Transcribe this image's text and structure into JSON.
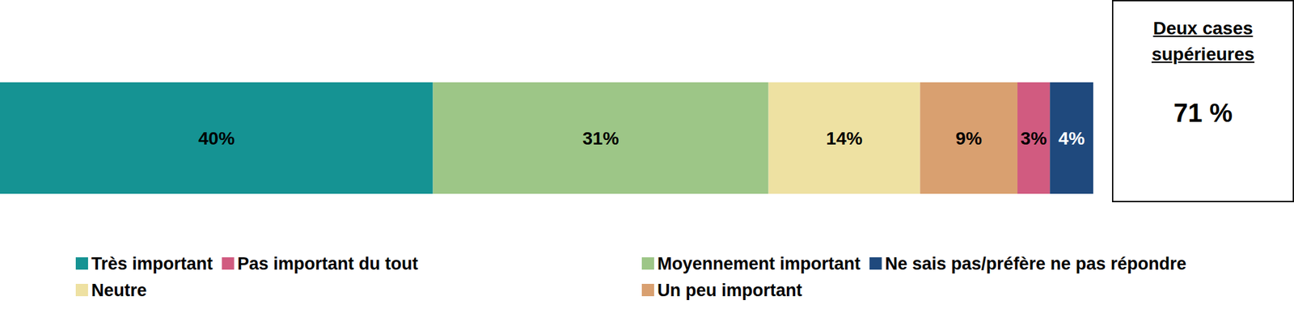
{
  "chart_data": {
    "type": "bar",
    "orientation": "horizontal",
    "stacked": true,
    "data_labels": true,
    "tick_labels": false,
    "grid": false,
    "categories": [
      null
    ],
    "xlim": [
      0,
      101
    ],
    "series": [
      {
        "name": "Très important",
        "color": "#159393",
        "values": [
          40
        ],
        "value_labels": [
          "40%"
        ]
      },
      {
        "name": "Moyennement important",
        "color": "#9dc687",
        "values": [
          31
        ],
        "value_labels": [
          "31%"
        ]
      },
      {
        "name": "Neutre",
        "color": "#eee1a2",
        "values": [
          14
        ],
        "value_labels": [
          "14%"
        ]
      },
      {
        "name": "Un peu important",
        "color": "#d9a070",
        "values": [
          9
        ],
        "value_labels": [
          "9%"
        ]
      },
      {
        "name": "Pas important du tout",
        "color": "#d15b80",
        "values": [
          3
        ],
        "value_labels": [
          "3%"
        ]
      },
      {
        "name": "Ne sais pas/préfère ne pas répondre",
        "color": "#1f497d",
        "values": [
          4
        ],
        "value_labels": [
          "4%"
        ]
      }
    ],
    "annotations": [
      {
        "title": "Deux cases supérieures",
        "text": "71 %"
      }
    ]
  }
}
